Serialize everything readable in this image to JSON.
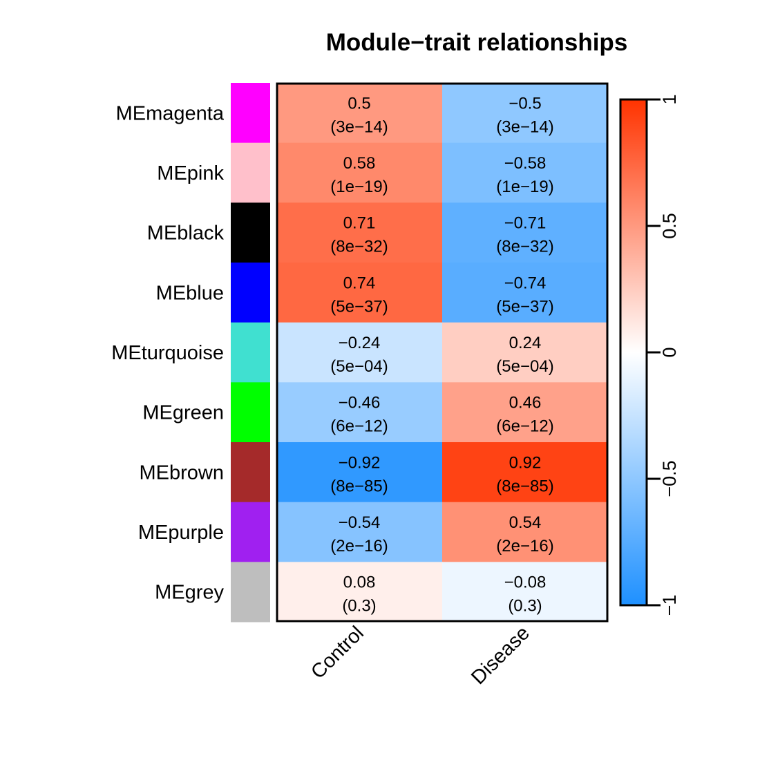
{
  "chart_data": {
    "type": "heatmap",
    "title": "Module−trait relationships",
    "xlabel": "",
    "ylabel": "",
    "columns": [
      "Control",
      "Disease"
    ],
    "rows": [
      {
        "label": "MEmagenta",
        "module_color": "#FF00FF",
        "values": [
          0.5,
          -0.5
        ],
        "display": [
          "0.5",
          "−0.5"
        ],
        "pvalues": [
          "(3e−14)",
          "(3e−14)"
        ]
      },
      {
        "label": "MEpink",
        "module_color": "#FFC0CB",
        "values": [
          0.58,
          -0.58
        ],
        "display": [
          "0.58",
          "−0.58"
        ],
        "pvalues": [
          "(1e−19)",
          "(1e−19)"
        ]
      },
      {
        "label": "MEblack",
        "module_color": "#000000",
        "values": [
          0.71,
          -0.71
        ],
        "display": [
          "0.71",
          "−0.71"
        ],
        "pvalues": [
          "(8e−32)",
          "(8e−32)"
        ]
      },
      {
        "label": "MEblue",
        "module_color": "#0000FF",
        "values": [
          0.74,
          -0.74
        ],
        "display": [
          "0.74",
          "−0.74"
        ],
        "pvalues": [
          "(5e−37)",
          "(5e−37)"
        ]
      },
      {
        "label": "MEturquoise",
        "module_color": "#40E0D0",
        "values": [
          -0.24,
          0.24
        ],
        "display": [
          "−0.24",
          "0.24"
        ],
        "pvalues": [
          "(5e−04)",
          "(5e−04)"
        ]
      },
      {
        "label": "MEgreen",
        "module_color": "#00FF00",
        "values": [
          -0.46,
          0.46
        ],
        "display": [
          "−0.46",
          "0.46"
        ],
        "pvalues": [
          "(6e−12)",
          "(6e−12)"
        ]
      },
      {
        "label": "MEbrown",
        "module_color": "#A52A2A",
        "values": [
          -0.92,
          0.92
        ],
        "display": [
          "−0.92",
          "0.92"
        ],
        "pvalues": [
          "(8e−85)",
          "(8e−85)"
        ]
      },
      {
        "label": "MEpurple",
        "module_color": "#A020F0",
        "values": [
          -0.54,
          0.54
        ],
        "display": [
          "−0.54",
          "0.54"
        ],
        "pvalues": [
          "(2e−16)",
          "(2e−16)"
        ]
      },
      {
        "label": "MEgrey",
        "module_color": "#BEBEBE",
        "values": [
          0.08,
          -0.08
        ],
        "display": [
          "0.08",
          "−0.08"
        ],
        "pvalues": [
          "(0.3)",
          "(0.3)"
        ]
      }
    ],
    "colorbar": {
      "range": [
        -1,
        1
      ],
      "ticks": [
        1,
        0.5,
        0,
        -0.5,
        -1
      ],
      "tick_labels": [
        "1",
        "0.5",
        "0",
        "−0.5",
        "−1"
      ],
      "low_color": "#1E90FF",
      "mid_color": "#FFFFFF",
      "high_color": "#FF3300",
      "placement": "right"
    },
    "legend": "colorbar-right",
    "grid": false
  }
}
